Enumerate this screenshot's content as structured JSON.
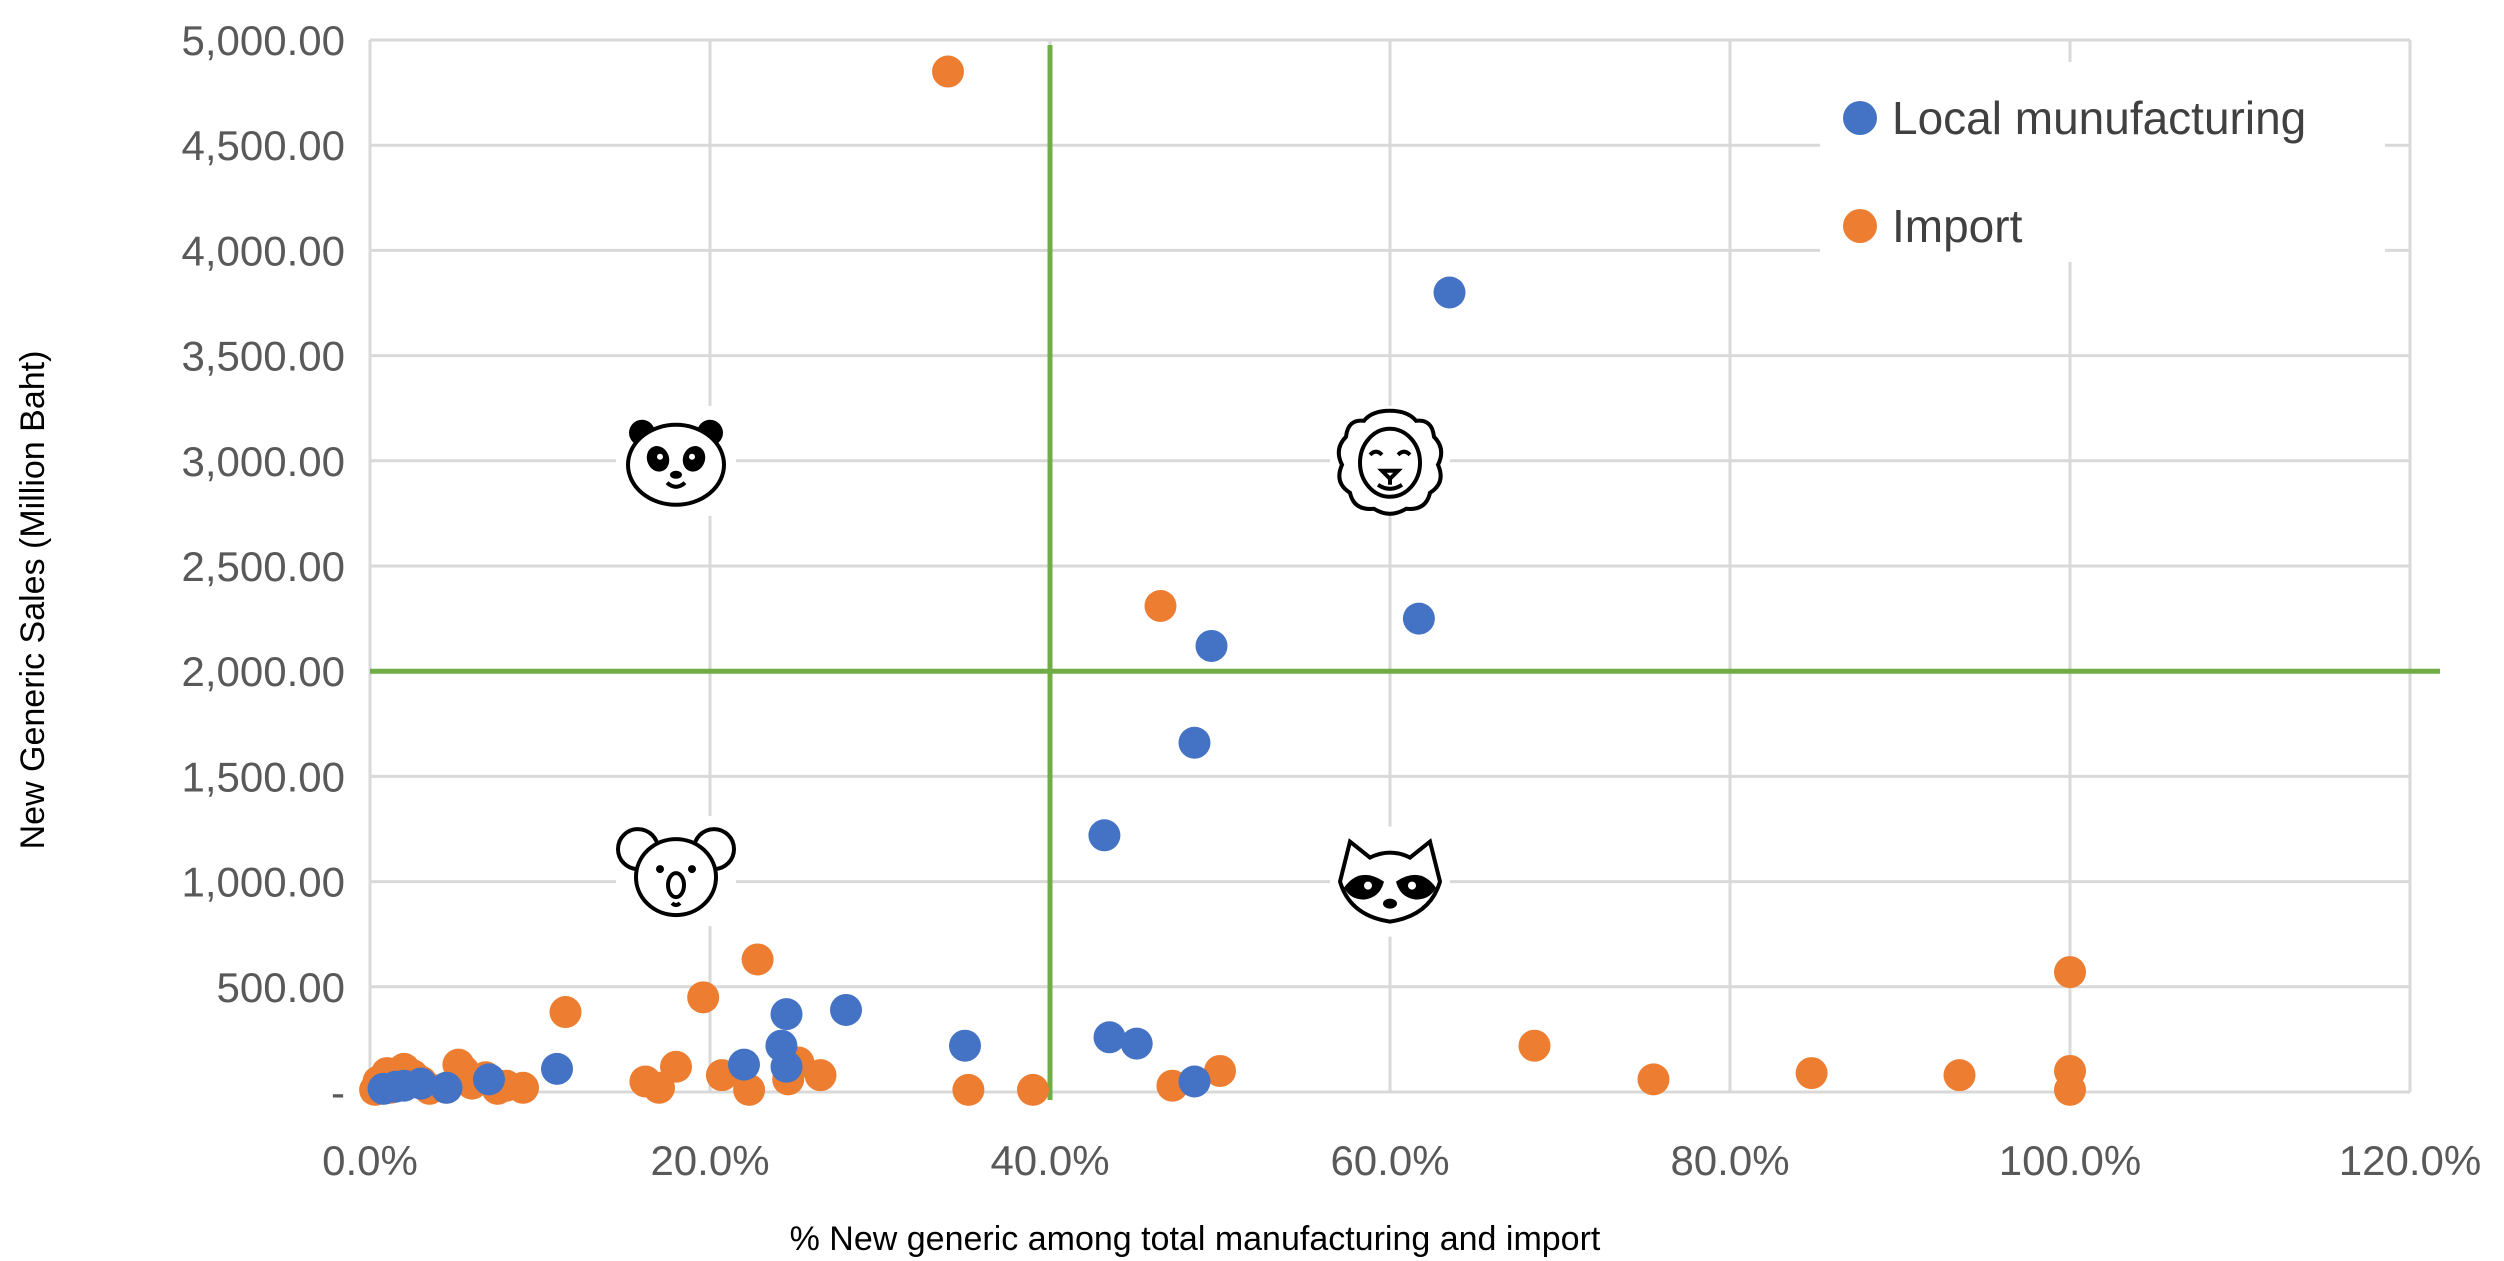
{
  "colors": {
    "local": "#4472c4",
    "import": "#ed7d31",
    "quadrant_lines": "#70ad47",
    "grid": "#d9d9d9"
  },
  "chart_data": {
    "type": "scatter",
    "title": "",
    "xlabel": "% New generic among total manufacturing and import",
    "ylabel": "New Generic Sales (Million Baht)",
    "xlim": [
      0,
      1.2
    ],
    "ylim": [
      0,
      5000
    ],
    "grid": true,
    "legend_position": "top-right",
    "x_ticks": [
      {
        "value": 0,
        "label": "0.0%"
      },
      {
        "value": 0.2,
        "label": "20.0%"
      },
      {
        "value": 0.4,
        "label": "40.0%"
      },
      {
        "value": 0.6,
        "label": "60.0%"
      },
      {
        "value": 0.8,
        "label": "80.0%"
      },
      {
        "value": 1.0,
        "label": "100.0%"
      },
      {
        "value": 1.2,
        "label": "120.0%"
      }
    ],
    "y_ticks": [
      {
        "value": 0,
        "label": "-"
      },
      {
        "value": 500,
        "label": "500.00"
      },
      {
        "value": 1000,
        "label": "1,000.00"
      },
      {
        "value": 1500,
        "label": "1,500.00"
      },
      {
        "value": 2000,
        "label": "2,000.00"
      },
      {
        "value": 2500,
        "label": "2,500.00"
      },
      {
        "value": 3000,
        "label": "3,000.00"
      },
      {
        "value": 3500,
        "label": "3,500.00"
      },
      {
        "value": 4000,
        "label": "4,000.00"
      },
      {
        "value": 4500,
        "label": "4,500.00"
      },
      {
        "value": 5000,
        "label": "5,000.00"
      }
    ],
    "quadrant_lines": {
      "x": 0.4,
      "y": 2000
    },
    "quadrant_icons": [
      {
        "name": "panda",
        "x": 0.18,
        "y": 3000
      },
      {
        "name": "lion",
        "x": 0.6,
        "y": 3000
      },
      {
        "name": "koala",
        "x": 0.18,
        "y": 1050
      },
      {
        "name": "raccoon",
        "x": 0.6,
        "y": 1000
      }
    ],
    "series": [
      {
        "name": "Local munufacturing",
        "color": "#4472c4",
        "points": [
          [
            0.635,
            3800
          ],
          [
            0.617,
            2250
          ],
          [
            0.495,
            2120
          ],
          [
            0.485,
            1660
          ],
          [
            0.432,
            1220
          ],
          [
            0.28,
            390
          ],
          [
            0.245,
            370
          ],
          [
            0.242,
            220
          ],
          [
            0.35,
            220
          ],
          [
            0.435,
            260
          ],
          [
            0.451,
            230
          ],
          [
            0.22,
            130
          ],
          [
            0.11,
            110
          ],
          [
            0.485,
            50
          ],
          [
            0.07,
            60
          ],
          [
            0.03,
            40
          ],
          [
            0.015,
            25
          ],
          [
            0.008,
            15
          ],
          [
            0.02,
            30
          ],
          [
            0.045,
            20
          ],
          [
            0.245,
            120
          ]
        ]
      },
      {
        "name": "Import",
        "color": "#ed7d31",
        "points": [
          [
            0.34,
            4850
          ],
          [
            0.465,
            2310
          ],
          [
            0.228,
            630
          ],
          [
            0.196,
            450
          ],
          [
            0.115,
            380
          ],
          [
            1.0,
            570
          ],
          [
            0.685,
            220
          ],
          [
            0.755,
            60
          ],
          [
            0.848,
            90
          ],
          [
            0.935,
            80
          ],
          [
            1.0,
            100
          ],
          [
            1.0,
            10
          ],
          [
            0.5,
            100
          ],
          [
            0.472,
            30
          ],
          [
            0.39,
            10
          ],
          [
            0.352,
            10
          ],
          [
            0.265,
            80
          ],
          [
            0.252,
            140
          ],
          [
            0.246,
            60
          ],
          [
            0.223,
            10
          ],
          [
            0.207,
            80
          ],
          [
            0.18,
            120
          ],
          [
            0.17,
            20
          ],
          [
            0.162,
            50
          ],
          [
            0.09,
            20
          ],
          [
            0.08,
            30
          ],
          [
            0.075,
            15
          ],
          [
            0.06,
            40
          ],
          [
            0.055,
            100
          ],
          [
            0.052,
            130
          ],
          [
            0.045,
            20
          ],
          [
            0.03,
            50
          ],
          [
            0.025,
            80
          ],
          [
            0.02,
            110
          ],
          [
            0.015,
            60
          ],
          [
            0.01,
            90
          ],
          [
            0.008,
            30
          ],
          [
            0.005,
            50
          ],
          [
            0.003,
            10
          ],
          [
            0.012,
            20
          ],
          [
            0.035,
            15
          ],
          [
            0.068,
            70
          ]
        ]
      }
    ]
  }
}
